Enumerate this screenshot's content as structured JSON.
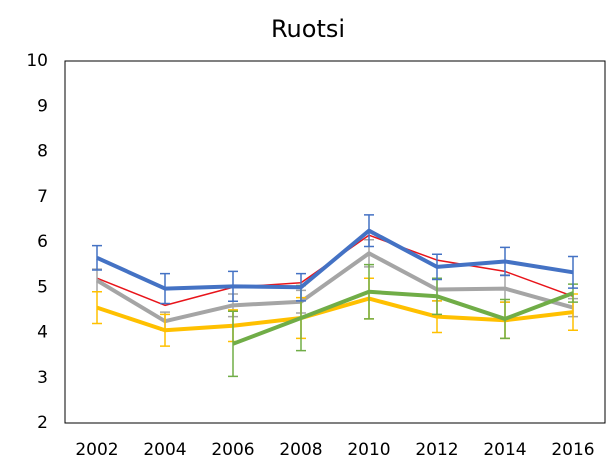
{
  "chart_data": {
    "type": "line",
    "title": "Ruotsi",
    "categories": [
      "2002",
      "2004",
      "2006",
      "2008",
      "2010",
      "2012",
      "2014",
      "2016"
    ],
    "ylim": [
      2,
      10
    ],
    "yticks": [
      2,
      3,
      4,
      5,
      6,
      7,
      8,
      9,
      10
    ],
    "grid": false,
    "series": [
      {
        "color": "#e8141a",
        "width": 1.5,
        "values": [
          5.2,
          4.6,
          5.0,
          5.1,
          6.15,
          5.6,
          5.35,
          4.8
        ]
      },
      {
        "color": "#a5a5a5",
        "width": 4,
        "values": [
          5.15,
          4.25,
          4.6,
          4.68,
          5.75,
          4.95,
          4.97,
          4.55
        ],
        "errors": [
          0.25,
          0.2,
          0.25,
          0.25,
          0.3,
          0.25,
          0.3,
          0.2
        ]
      },
      {
        "color": "#ffc000",
        "width": 4,
        "values": [
          4.55,
          4.05,
          4.15,
          4.32,
          4.75,
          4.35,
          4.27,
          4.45
        ],
        "errors": [
          0.35,
          0.35,
          0.35,
          0.45,
          0.45,
          0.35,
          0.4,
          0.4
        ]
      },
      {
        "color": "#70ad47",
        "width": 4,
        "values": [
          null,
          null,
          3.75,
          4.32,
          4.9,
          4.8,
          4.3,
          4.87
        ],
        "errors": [
          null,
          null,
          0.72,
          0.72,
          0.6,
          0.4,
          0.43,
          0.2
        ]
      },
      {
        "color": "#4472c4",
        "width": 4,
        "values": [
          5.65,
          4.97,
          5.02,
          5.0,
          6.25,
          5.45,
          5.57,
          5.33
        ],
        "errors": [
          0.27,
          0.33,
          0.33,
          0.3,
          0.35,
          0.28,
          0.31,
          0.35
        ]
      }
    ]
  }
}
